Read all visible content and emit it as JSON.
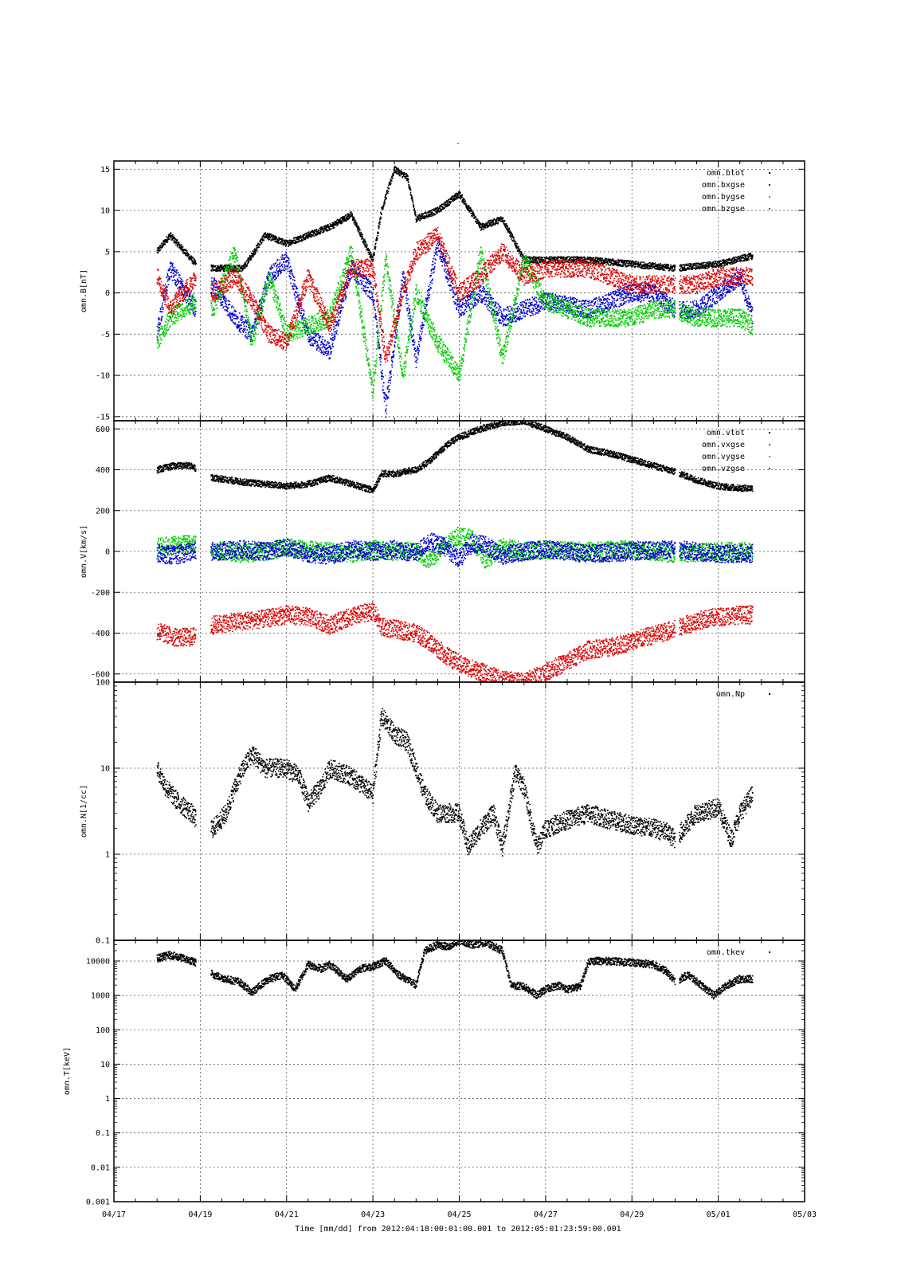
{
  "figure": {
    "title": "-",
    "x_axis_label": "Time [mm/dd]  from 2012:04:18:00:01:00.001  to  2012:05:01:23:59:00.001",
    "x_ticks": [
      "04/17",
      "04/19",
      "04/21",
      "04/23",
      "04/25",
      "04/27",
      "04/29",
      "05/01",
      "05/03"
    ]
  },
  "colors": {
    "black": "#000000",
    "red": "#dd0000",
    "green": "#00cc00",
    "blue": "#0000cc",
    "grid": "#555555"
  },
  "chart_data": [
    {
      "type": "scatter",
      "ylabel": "omn.B[nT]",
      "xlim_days": [
        17,
        33
      ],
      "ylim": [
        -15.5,
        16
      ],
      "y_ticks": [
        "15",
        "10",
        "5",
        "0",
        "-5",
        "-10",
        "-15"
      ],
      "grid": true,
      "legend_position": "top-right",
      "series": [
        {
          "name": "omn.btot",
          "color": "#000000",
          "x": [
            18.0,
            18.3,
            18.9,
            19.3,
            20.0,
            20.5,
            21.0,
            21.5,
            22.0,
            22.5,
            23.0,
            23.2,
            23.5,
            23.8,
            24.0,
            24.5,
            25.0,
            25.5,
            26.0,
            26.5,
            27.0,
            28.0,
            29.0,
            30.0,
            31.0,
            31.8
          ],
          "values": [
            5,
            7,
            3.5,
            3,
            3,
            7,
            6,
            7,
            8,
            9.5,
            4,
            10,
            15,
            14,
            9,
            10,
            12,
            8,
            9,
            4,
            4,
            4,
            3.5,
            3,
            3.5,
            4.5
          ]
        },
        {
          "name": "omn.bxgse",
          "color": "#0000cc",
          "x": [
            18.0,
            18.3,
            18.9,
            19.3,
            19.8,
            20.2,
            20.6,
            21.0,
            21.5,
            22.0,
            22.5,
            23.0,
            23.3,
            23.7,
            24.0,
            24.5,
            25.0,
            25.5,
            26.0,
            26.5,
            27.0,
            28.0,
            29.0,
            29.5,
            30.0,
            30.5,
            31.0,
            31.5,
            31.8
          ],
          "values": [
            -5,
            3,
            -2,
            1,
            -3,
            -5,
            2,
            4,
            -5,
            -7,
            3,
            0,
            -14,
            2,
            -8,
            6,
            -2,
            0,
            -3,
            -2,
            -1,
            -2,
            0,
            0,
            -2,
            -2,
            0,
            2,
            -3
          ]
        },
        {
          "name": "omn.bygse",
          "color": "#00cc00",
          "x": [
            18.0,
            18.3,
            18.9,
            19.3,
            19.8,
            20.2,
            20.6,
            21.0,
            21.5,
            22.0,
            22.5,
            23.0,
            23.3,
            23.7,
            24.0,
            24.5,
            25.0,
            25.5,
            26.0,
            26.5,
            27.0,
            28.0,
            29.0,
            29.5,
            30.0,
            30.5,
            31.0,
            31.5,
            31.8
          ],
          "values": [
            -6,
            -3,
            -1,
            -2,
            5,
            -6,
            2,
            -5,
            -4,
            -3,
            5,
            -12,
            4,
            -10,
            0,
            -6,
            -10,
            5,
            -8,
            4,
            -1,
            -3,
            -3,
            -2,
            -2,
            -3,
            -3,
            -3,
            -4
          ]
        },
        {
          "name": "omn.bzgse",
          "color": "#dd0000",
          "x": [
            18.0,
            18.3,
            18.9,
            19.3,
            19.8,
            20.2,
            20.6,
            21.0,
            21.5,
            22.0,
            22.5,
            23.0,
            23.3,
            23.7,
            24.0,
            24.5,
            25.0,
            25.5,
            26.0,
            26.5,
            27.0,
            28.0,
            29.0,
            29.5,
            30.0,
            30.5,
            31.0,
            31.5,
            31.8
          ],
          "values": [
            2,
            -2,
            2,
            0,
            2,
            -1,
            -5,
            -6,
            2,
            -4,
            3,
            3,
            -8,
            0,
            5,
            7,
            0,
            2,
            5,
            2,
            3,
            3,
            1,
            1,
            1,
            1,
            2,
            2,
            2
          ]
        }
      ]
    },
    {
      "type": "scatter",
      "ylabel": "omn.V[km/s]",
      "xlim_days": [
        17,
        33
      ],
      "ylim": [
        -640,
        640
      ],
      "y_ticks": [
        "600",
        "400",
        "200",
        "0",
        "-200",
        "-400",
        "-600"
      ],
      "grid": true,
      "legend_position": "top-right",
      "series": [
        {
          "name": "omn.vtot",
          "color": "#000000",
          "x": [
            18.0,
            18.4,
            18.8,
            19.3,
            20.0,
            20.5,
            21.0,
            21.5,
            22.0,
            22.5,
            23.0,
            23.2,
            23.5,
            24.0,
            24.3,
            24.7,
            25.0,
            25.5,
            26.0,
            26.5,
            27.0,
            27.5,
            28.0,
            28.5,
            29.0,
            29.5,
            30.0,
            30.5,
            31.0,
            31.5,
            31.8
          ],
          "values": [
            400,
            420,
            420,
            360,
            340,
            330,
            320,
            330,
            360,
            330,
            300,
            380,
            380,
            400,
            440,
            520,
            560,
            600,
            630,
            640,
            600,
            560,
            500,
            480,
            450,
            420,
            390,
            350,
            320,
            310,
            310
          ]
        },
        {
          "name": "omn.vxgse",
          "color": "#dd0000",
          "x": [
            18.0,
            18.4,
            18.8,
            19.3,
            20.0,
            20.5,
            21.0,
            21.5,
            22.0,
            22.5,
            23.0,
            23.2,
            23.5,
            24.0,
            24.3,
            24.7,
            25.0,
            25.5,
            26.0,
            26.5,
            27.0,
            27.5,
            28.0,
            28.5,
            29.0,
            29.5,
            30.0,
            30.5,
            31.0,
            31.5,
            31.8
          ],
          "values": [
            -390,
            -420,
            -420,
            -360,
            -340,
            -330,
            -310,
            -320,
            -360,
            -320,
            -290,
            -370,
            -380,
            -400,
            -440,
            -510,
            -550,
            -590,
            -630,
            -640,
            -590,
            -540,
            -480,
            -470,
            -440,
            -410,
            -380,
            -340,
            -320,
            -310,
            -310
          ]
        },
        {
          "name": "omn.vygse",
          "color": "#00cc00",
          "x": [
            18.0,
            18.4,
            18.8,
            19.3,
            20.0,
            20.5,
            21.0,
            21.5,
            22.0,
            22.5,
            23.0,
            23.5,
            24.0,
            24.3,
            24.7,
            25.0,
            25.3,
            25.6,
            26.0,
            26.5,
            27.0,
            28.0,
            29.0,
            30.0,
            31.0,
            31.8
          ],
          "values": [
            20,
            30,
            40,
            10,
            -10,
            0,
            20,
            10,
            0,
            -10,
            10,
            0,
            0,
            -40,
            30,
            80,
            60,
            -40,
            20,
            0,
            10,
            0,
            10,
            -10,
            0,
            0
          ]
        },
        {
          "name": "omn.vzgse",
          "color": "#0000cc",
          "x": [
            18.0,
            18.4,
            18.8,
            19.3,
            20.0,
            20.5,
            21.0,
            21.5,
            22.0,
            22.5,
            23.0,
            23.5,
            24.0,
            24.3,
            24.7,
            25.0,
            25.3,
            25.6,
            26.0,
            26.5,
            27.0,
            28.0,
            29.0,
            30.0,
            31.0,
            31.8
          ],
          "values": [
            -10,
            -20,
            0,
            0,
            10,
            0,
            20,
            -10,
            -20,
            10,
            0,
            10,
            -10,
            50,
            20,
            -40,
            40,
            30,
            -20,
            0,
            10,
            -10,
            0,
            10,
            -10,
            -10
          ]
        }
      ]
    },
    {
      "type": "scatter",
      "ylabel": "omn.N[1/cc]",
      "xlim_days": [
        17,
        33
      ],
      "ylim": [
        0.1,
        100
      ],
      "yscale": "log",
      "y_ticks": [
        "100",
        "10",
        "1",
        "0.1"
      ],
      "grid": true,
      "legend_position": "top-right",
      "series": [
        {
          "name": "omn.Np",
          "color": "#000000",
          "x": [
            18.0,
            18.2,
            18.5,
            18.8,
            18.9,
            19.3,
            19.6,
            19.8,
            20.0,
            20.2,
            20.5,
            21.0,
            21.3,
            21.5,
            21.8,
            22.0,
            22.5,
            23.0,
            23.2,
            23.5,
            23.8,
            24.0,
            24.2,
            24.5,
            25.0,
            25.2,
            25.5,
            25.8,
            26.0,
            26.3,
            26.5,
            26.8,
            27.0,
            27.5,
            28.0,
            28.5,
            29.0,
            29.5,
            29.8,
            30.0,
            30.5,
            31.0,
            31.3,
            31.5,
            31.8
          ],
          "values": [
            10,
            6,
            4,
            3,
            2.5,
            2,
            3,
            6,
            10,
            15,
            10,
            10,
            8,
            4,
            6,
            10,
            8,
            5,
            40,
            25,
            20,
            10,
            5,
            3,
            3,
            1.2,
            2,
            3,
            1.2,
            9,
            6,
            1.2,
            2,
            2.5,
            3,
            2.5,
            2.2,
            2,
            1.8,
            1.5,
            3,
            3.5,
            1.5,
            3,
            5
          ]
        }
      ]
    },
    {
      "type": "scatter",
      "ylabel": "omn.T[keV]",
      "xlim_days": [
        17,
        33
      ],
      "ylim": [
        0.001,
        40000
      ],
      "yscale": "log",
      "y_ticks": [
        "10000",
        "1000",
        "100",
        "10",
        "1",
        "0.1",
        "0.01",
        "0.001"
      ],
      "grid": true,
      "legend_position": "top-right",
      "series": [
        {
          "name": "omn.tkev",
          "color": "#000000",
          "x": [
            18.0,
            18.3,
            18.6,
            18.9,
            19.3,
            19.6,
            19.9,
            20.2,
            20.4,
            20.6,
            20.9,
            21.2,
            21.5,
            21.8,
            22.0,
            22.4,
            22.7,
            23.0,
            23.3,
            23.6,
            24.0,
            24.2,
            24.5,
            24.8,
            25.0,
            25.3,
            25.6,
            26.0,
            26.2,
            26.5,
            26.8,
            27.0,
            27.3,
            27.5,
            27.8,
            28.0,
            28.5,
            29.0,
            29.5,
            29.8,
            30.0,
            30.3,
            30.6,
            30.9,
            31.2,
            31.5,
            31.8
          ],
          "values": [
            12000,
            15000,
            12000,
            9000,
            4000,
            3000,
            2500,
            1200,
            2000,
            3000,
            4000,
            1500,
            8000,
            6000,
            8000,
            3000,
            6000,
            7000,
            10000,
            4000,
            2000,
            20000,
            30000,
            25000,
            40000,
            30000,
            35000,
            20000,
            2000,
            1800,
            1000,
            1500,
            2000,
            1500,
            1800,
            10000,
            10000,
            9000,
            8000,
            5000,
            2500,
            4000,
            2000,
            1000,
            2000,
            3000,
            3000
          ]
        }
      ]
    }
  ]
}
